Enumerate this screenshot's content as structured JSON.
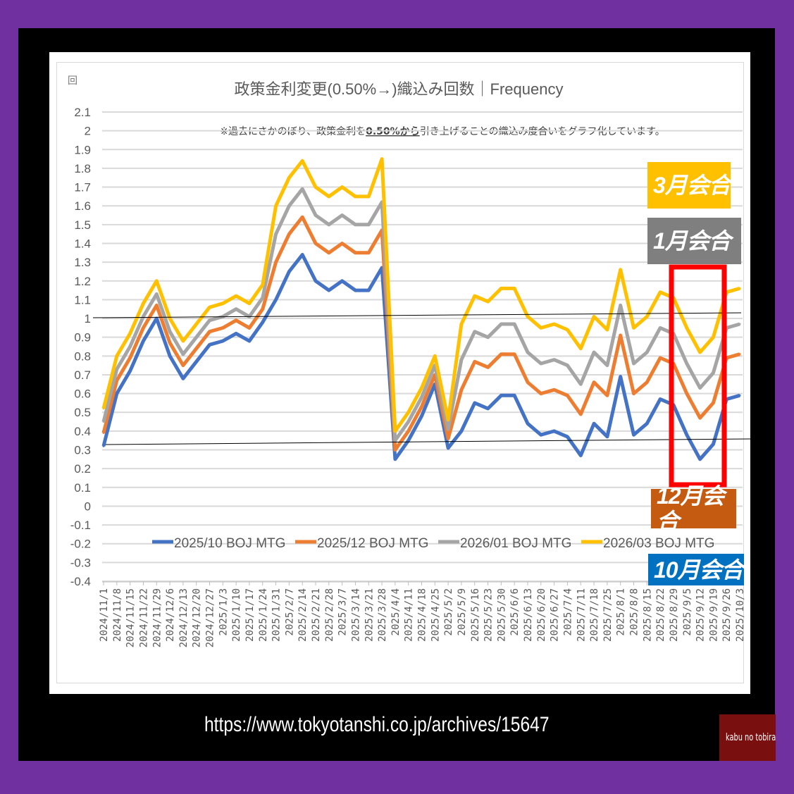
{
  "chart_data": {
    "type": "line",
    "title": "政策金利変更(0.50%→)織込み回数｜Frequency",
    "subtitle_pre": "※過去にさかのぼり、政策金利を",
    "subtitle_bold": "0.50%から",
    "subtitle_post": "引き上げることの織込み度合いをグラフ化しています。",
    "corner_icon": "回",
    "ylim": [
      -0.4,
      2.1
    ],
    "yticks": [
      "2.1",
      "2",
      "1.9",
      "1.8",
      "1.7",
      "1.6",
      "1.5",
      "1.4",
      "1.3",
      "1.2",
      "1.1",
      "1",
      "0.9",
      "0.8",
      "0.7",
      "0.6",
      "0.5",
      "0.4",
      "0.3",
      "0.2",
      "0.1",
      "0",
      "-0.1",
      "-0.2",
      "-0.3",
      "-0.4"
    ],
    "grid": true,
    "legend_placement": "bottom",
    "categories": [
      "2024/11/1",
      "2024/11/8",
      "2024/11/15",
      "2024/11/22",
      "2024/11/29",
      "2024/12/6",
      "2024/12/13",
      "2024/12/20",
      "2024/12/27",
      "2025/1/3",
      "2025/1/10",
      "2025/1/17",
      "2025/1/24",
      "2025/1/31",
      "2025/2/7",
      "2025/2/14",
      "2025/2/21",
      "2025/2/28",
      "2025/3/7",
      "2025/3/14",
      "2025/3/21",
      "2025/3/28",
      "2025/4/4",
      "2025/4/11",
      "2025/4/18",
      "2025/4/25",
      "2025/5/2",
      "2025/5/9",
      "2025/5/16",
      "2025/5/23",
      "2025/5/30",
      "2025/6/6",
      "2025/6/13",
      "2025/6/20",
      "2025/6/27",
      "2025/7/4",
      "2025/7/11",
      "2025/7/18",
      "2025/7/25",
      "2025/8/1",
      "2025/8/8",
      "2025/8/15",
      "2025/8/22",
      "2025/8/29",
      "2025/9/5",
      "2025/9/12",
      "2025/9/19",
      "2025/9/26",
      "2025/10/3"
    ],
    "series": [
      {
        "name": "2025/10 BOJ MTG",
        "color": "#4472C4",
        "values": [
          0.32,
          0.6,
          0.72,
          0.88,
          1.0,
          0.8,
          0.68,
          0.77,
          0.86,
          0.88,
          0.92,
          0.88,
          0.98,
          1.1,
          1.25,
          1.34,
          1.2,
          1.15,
          1.2,
          1.15,
          1.15,
          1.27,
          0.25,
          0.35,
          0.48,
          0.65,
          0.31,
          0.4,
          0.55,
          0.52,
          0.59,
          0.59,
          0.44,
          0.38,
          0.4,
          0.37,
          0.27,
          0.44,
          0.37,
          0.69,
          0.38,
          0.44,
          0.57,
          0.54,
          0.38,
          0.25,
          0.33,
          0.57,
          0.59
        ]
      },
      {
        "name": "2025/12 BOJ MTG",
        "color": "#ED7D31",
        "values": [
          0.39,
          0.67,
          0.79,
          0.95,
          1.07,
          0.87,
          0.75,
          0.84,
          0.93,
          0.95,
          0.99,
          0.95,
          1.05,
          1.3,
          1.45,
          1.54,
          1.4,
          1.35,
          1.4,
          1.35,
          1.35,
          1.47,
          0.3,
          0.4,
          0.53,
          0.7,
          0.36,
          0.62,
          0.77,
          0.74,
          0.81,
          0.81,
          0.66,
          0.6,
          0.62,
          0.59,
          0.49,
          0.66,
          0.59,
          0.91,
          0.6,
          0.66,
          0.79,
          0.76,
          0.6,
          0.47,
          0.55,
          0.79,
          0.81
        ]
      },
      {
        "name": "2026/01 BOJ MTG",
        "color": "#A5A5A5",
        "values": [
          0.45,
          0.73,
          0.85,
          1.01,
          1.13,
          0.93,
          0.81,
          0.9,
          0.99,
          1.01,
          1.05,
          1.01,
          1.11,
          1.45,
          1.6,
          1.69,
          1.55,
          1.5,
          1.55,
          1.5,
          1.5,
          1.62,
          0.35,
          0.45,
          0.58,
          0.75,
          0.41,
          0.78,
          0.93,
          0.9,
          0.97,
          0.97,
          0.82,
          0.76,
          0.78,
          0.75,
          0.65,
          0.82,
          0.75,
          1.07,
          0.76,
          0.82,
          0.95,
          0.92,
          0.76,
          0.63,
          0.71,
          0.95,
          0.97
        ]
      },
      {
        "name": "2026/03 BOJ MTG",
        "color": "#FFC000",
        "values": [
          0.52,
          0.8,
          0.92,
          1.08,
          1.2,
          1.0,
          0.88,
          0.97,
          1.06,
          1.08,
          1.12,
          1.08,
          1.18,
          1.6,
          1.75,
          1.84,
          1.7,
          1.65,
          1.7,
          1.65,
          1.65,
          1.85,
          0.4,
          0.5,
          0.63,
          0.8,
          0.46,
          0.97,
          1.12,
          1.09,
          1.16,
          1.16,
          1.01,
          0.95,
          0.97,
          0.94,
          0.84,
          1.01,
          0.94,
          1.26,
          0.95,
          1.01,
          1.14,
          1.11,
          0.95,
          0.82,
          0.9,
          1.14,
          1.16
        ]
      }
    ],
    "annotations": {
      "tag_march": {
        "label": "3月会合",
        "color": "#FFC000"
      },
      "tag_january": {
        "label": "1月会合",
        "color": "#7F7F7F"
      },
      "tag_december": {
        "label": "12月会合",
        "color": "#C55A11"
      },
      "tag_october": {
        "label": "10月会合",
        "color": "#0070C0"
      },
      "highlight_box_color": "#FF0000"
    }
  },
  "footer": {
    "url": "https://www.tokyotanshi.co.jp/archives/15647",
    "logo_text": "kabu no tobira"
  }
}
